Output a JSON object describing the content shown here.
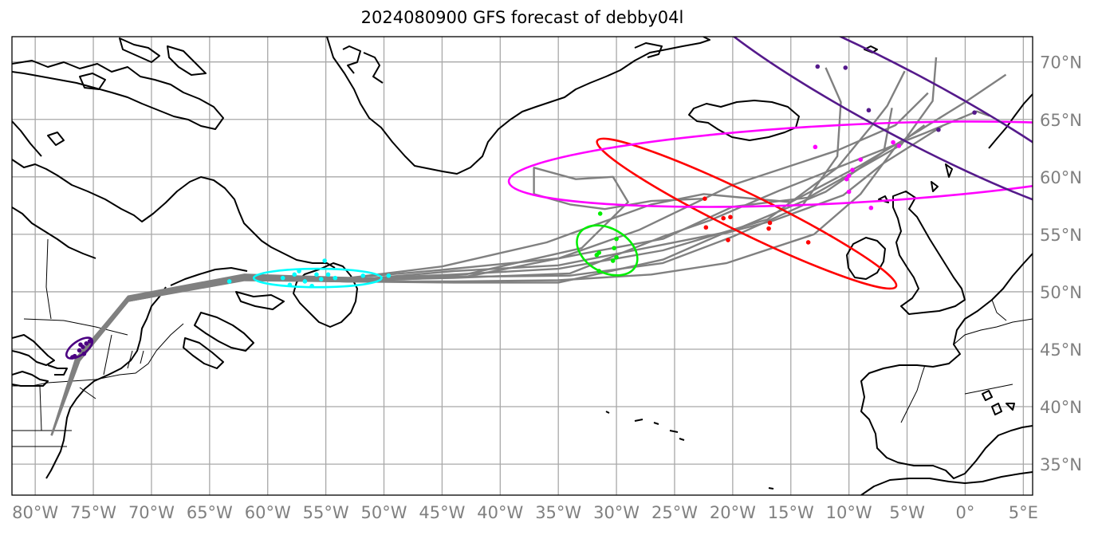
{
  "title": "2024080900 GFS forecast of debby04l",
  "map": {
    "lon_range": [
      -82,
      5.8
    ],
    "lat_range": [
      32.3,
      72.2
    ],
    "lon_ticks": [
      {
        "value": -80,
        "label": "80°W"
      },
      {
        "value": -75,
        "label": "75°W"
      },
      {
        "value": -70,
        "label": "70°W"
      },
      {
        "value": -65,
        "label": "65°W"
      },
      {
        "value": -60,
        "label": "60°W"
      },
      {
        "value": -55,
        "label": "55°W"
      },
      {
        "value": -50,
        "label": "50°W"
      },
      {
        "value": -45,
        "label": "45°W"
      },
      {
        "value": -40,
        "label": "40°W"
      },
      {
        "value": -35,
        "label": "35°W"
      },
      {
        "value": -30,
        "label": "30°W"
      },
      {
        "value": -25,
        "label": "25°W"
      },
      {
        "value": -20,
        "label": "20°W"
      },
      {
        "value": -15,
        "label": "15°W"
      },
      {
        "value": -10,
        "label": "10°W"
      },
      {
        "value": -5,
        "label": "5°W"
      },
      {
        "value": 0,
        "label": "0°"
      },
      {
        "value": 5,
        "label": "5°E"
      }
    ],
    "lat_ticks": [
      {
        "value": 35,
        "label": "35°N"
      },
      {
        "value": 40,
        "label": "40°N"
      },
      {
        "value": 45,
        "label": "45°N"
      },
      {
        "value": 50,
        "label": "50°N"
      },
      {
        "value": 55,
        "label": "55°N"
      },
      {
        "value": 60,
        "label": "60°N"
      },
      {
        "value": 65,
        "label": "65°N"
      },
      {
        "value": 70,
        "label": "70°N"
      }
    ],
    "gridlines": true,
    "colors": {
      "track": "#808080",
      "coastline": "#000000",
      "gridline": "#a8a8a8",
      "tick_label": "#808080",
      "time_1": "#4b0082",
      "time_2": "#00ffff",
      "time_3": "#00ee00",
      "time_4": "#ff0000",
      "time_5": "#ff00ff",
      "time_6": "#551a8b"
    }
  },
  "forecast_tracks": [
    [
      [
        -78.6,
        37.5
      ],
      [
        -76.5,
        44.2
      ],
      [
        -72,
        49.5
      ],
      [
        -62,
        51.4
      ],
      [
        -53,
        51.2
      ],
      [
        -45,
        51.9
      ],
      [
        -35,
        52.9
      ],
      [
        -28,
        55.4
      ],
      [
        -20,
        59.3
      ],
      [
        -11,
        62.3
      ],
      [
        -6,
        64.5
      ],
      [
        -3.2,
        67.3
      ]
    ],
    [
      [
        -78.6,
        37.5
      ],
      [
        -76.4,
        44.2
      ],
      [
        -72,
        49.6
      ],
      [
        -62,
        51.5
      ],
      [
        -53,
        51.2
      ],
      [
        -45,
        52.2
      ],
      [
        -36,
        54.3
      ],
      [
        -27,
        57.6
      ],
      [
        -22.5,
        58.5
      ],
      [
        -15,
        57.8
      ],
      [
        -9,
        61
      ],
      [
        -4,
        64
      ],
      [
        0,
        66.5
      ],
      [
        3.5,
        68.9
      ]
    ],
    [
      [
        -78.6,
        37.5
      ],
      [
        -76.4,
        44.1
      ],
      [
        -72,
        49.4
      ],
      [
        -62,
        51.3
      ],
      [
        -53,
        51.1
      ],
      [
        -44,
        51.5
      ],
      [
        -35,
        52
      ],
      [
        -26,
        53.6
      ],
      [
        -17,
        56.3
      ],
      [
        -11,
        60.8
      ],
      [
        -8,
        64.5
      ],
      [
        -6.7,
        66.2
      ],
      [
        -5.2,
        69.2
      ]
    ],
    [
      [
        -78.6,
        37.5
      ],
      [
        -76.4,
        44
      ],
      [
        -72,
        49.3
      ],
      [
        -62,
        51.2
      ],
      [
        -53,
        51
      ],
      [
        -44,
        51.3
      ],
      [
        -34,
        51.4
      ],
      [
        -26,
        52.5
      ],
      [
        -20,
        54.8
      ],
      [
        -14,
        57.5
      ],
      [
        -11,
        61.8
      ],
      [
        -10.7,
        66.5
      ],
      [
        -12,
        69.5
      ]
    ],
    [
      [
        -78.6,
        37.5
      ],
      [
        -76.3,
        44
      ],
      [
        -72,
        49.2
      ],
      [
        -62,
        51.1
      ],
      [
        -53,
        50.9
      ],
      [
        -44,
        50.9
      ],
      [
        -35,
        51
      ],
      [
        -27,
        51.5
      ],
      [
        -20.5,
        52.5
      ],
      [
        -13,
        55
      ],
      [
        -9,
        58.5
      ],
      [
        -6,
        62.6
      ],
      [
        -3.5,
        64.5
      ]
    ],
    [
      [
        -78.6,
        37.5
      ],
      [
        -76.3,
        44.1
      ],
      [
        -72,
        49.3
      ],
      [
        -62,
        51.2
      ],
      [
        -53,
        51
      ],
      [
        -44,
        51.2
      ],
      [
        -34,
        51.6
      ],
      [
        -26,
        54.8
      ],
      [
        -22,
        56.2
      ],
      [
        -16,
        58.8
      ],
      [
        -9,
        61.6
      ],
      [
        -3.5,
        63.8
      ],
      [
        1,
        65.7
      ],
      [
        2.1,
        65.3
      ]
    ],
    [
      [
        -78.6,
        37.5
      ],
      [
        -76.2,
        44
      ],
      [
        -72,
        49.2
      ],
      [
        -62,
        51.1
      ],
      [
        -53,
        50.9
      ],
      [
        -43,
        51.5
      ],
      [
        -33,
        53.8
      ],
      [
        -29,
        57.8
      ],
      [
        -30.3,
        60
      ],
      [
        -33.5,
        59.8
      ],
      [
        -37.1,
        60.8
      ],
      [
        -37.1,
        58.5
      ],
      [
        -34,
        57.6
      ],
      [
        -31,
        57.2
      ],
      [
        -27,
        57.9
      ],
      [
        -22.5,
        58.1
      ]
    ],
    [
      [
        -78.6,
        37.5
      ],
      [
        -76.3,
        44.1
      ],
      [
        -72,
        49.4
      ],
      [
        -62,
        51.2
      ],
      [
        -53,
        51
      ],
      [
        -44,
        51.8
      ],
      [
        -35,
        52.3
      ],
      [
        -27,
        53.9
      ],
      [
        -20,
        55.3
      ],
      [
        -12,
        58.7
      ],
      [
        -7,
        62.2
      ],
      [
        -6.3,
        66
      ]
    ],
    [
      [
        -78.6,
        37.5
      ],
      [
        -76.2,
        44
      ],
      [
        -72,
        49.3
      ],
      [
        -62,
        51.1
      ],
      [
        -53,
        50.9
      ],
      [
        -43,
        51.3
      ],
      [
        -33,
        53.3
      ],
      [
        -26,
        54.6
      ],
      [
        -20,
        57.4
      ],
      [
        -13.5,
        58.2
      ],
      [
        -10,
        60.2
      ],
      [
        -5.5,
        62.8
      ],
      [
        -2.8,
        66.6
      ],
      [
        -2.5,
        70.4
      ]
    ],
    [
      [
        -78.6,
        37.5
      ],
      [
        -76.3,
        44
      ],
      [
        -72,
        49.2
      ],
      [
        -62,
        51
      ],
      [
        -53,
        50.9
      ],
      [
        -44,
        50.8
      ],
      [
        -35,
        50.8
      ],
      [
        -26,
        52.8
      ],
      [
        -21,
        55
      ],
      [
        -16.5,
        56.2
      ],
      [
        -10.5,
        58.4
      ],
      [
        -7,
        61.2
      ],
      [
        -2,
        64.4
      ]
    ]
  ],
  "probability_ellipses": [
    {
      "time_index": 1,
      "center": [
        -76.2,
        45.1
      ],
      "a_deg": 1.3,
      "b_deg": 0.6,
      "angle": -35
    },
    {
      "time_index": 2,
      "center": [
        -55.7,
        51.2
      ],
      "a_deg": 5.5,
      "b_deg": 0.8,
      "angle": 0
    },
    {
      "time_index": 3,
      "center": [
        -30.8,
        53.6
      ],
      "a_deg": 2.8,
      "b_deg": 1.9,
      "angle": 30
    },
    {
      "time_index": 4,
      "center": [
        -18.8,
        56.8
      ],
      "a_deg": 14.3,
      "b_deg": 1.7,
      "angle": 26
    },
    {
      "time_index": 5,
      "center": [
        -10.8,
        61.1
      ],
      "a_deg": 28.5,
      "b_deg": 3.4,
      "angle": -3
    },
    {
      "time_index": 6,
      "center": [
        -5.2,
        66.3
      ],
      "a_deg": 20.2,
      "b_deg": 2.8,
      "angle": 28
    }
  ],
  "forecast_points": [
    {
      "time_index": 1,
      "points": [
        [
          -76.6,
          44.4
        ],
        [
          -76.2,
          44.9
        ],
        [
          -75.9,
          45.2
        ],
        [
          -75.6,
          45.5
        ],
        [
          -75.3,
          45.7
        ],
        [
          -76.8,
          44.3
        ],
        [
          -75.8,
          44.6
        ],
        [
          -76.1,
          45.4
        ]
      ]
    },
    {
      "time_index": 2,
      "points": [
        [
          -63.3,
          50.9
        ],
        [
          -58.7,
          51.2
        ],
        [
          -58.1,
          50.6
        ],
        [
          -57.7,
          51.5
        ],
        [
          -57.3,
          51.8
        ],
        [
          -56.8,
          50.9
        ],
        [
          -56.2,
          50.5
        ],
        [
          -55.8,
          51.5
        ],
        [
          -55.4,
          51.1
        ],
        [
          -54.8,
          51.5
        ],
        [
          -54.2,
          51.2
        ],
        [
          -51.8,
          51.4
        ],
        [
          -49.6,
          51.4
        ],
        [
          -55.1,
          52.7
        ]
      ]
    },
    {
      "time_index": 3,
      "points": [
        [
          -31.4,
          56.8
        ],
        [
          -31.7,
          53.2
        ],
        [
          -31.5,
          53.4
        ],
        [
          -30.2,
          53.8
        ],
        [
          -30,
          54.6
        ],
        [
          -30,
          53
        ],
        [
          -30.3,
          52.7
        ],
        [
          -31.5,
          51.8
        ]
      ]
    },
    {
      "time_index": 4,
      "points": [
        [
          -22.4,
          58.1
        ],
        [
          -22.3,
          55.6
        ],
        [
          -20.8,
          56.4
        ],
        [
          -20.4,
          54.5
        ],
        [
          -16.8,
          56
        ],
        [
          -16.9,
          55.5
        ],
        [
          -13.5,
          54.3
        ],
        [
          -20.2,
          56.5
        ]
      ]
    },
    {
      "time_index": 5,
      "points": [
        [
          -12.9,
          62.6
        ],
        [
          -10.2,
          59.8
        ],
        [
          -10,
          60.1
        ],
        [
          -9.7,
          60.6
        ],
        [
          -9,
          61.5
        ],
        [
          -10,
          58.7
        ],
        [
          -8.1,
          57.3
        ],
        [
          -5.7,
          62.7
        ],
        [
          -6.2,
          63
        ]
      ]
    },
    {
      "time_index": 6,
      "points": [
        [
          -12.7,
          69.6
        ],
        [
          -10.3,
          69.5
        ],
        [
          -8.3,
          65.8
        ],
        [
          -2.3,
          64.1
        ],
        [
          0.8,
          65.6
        ]
      ]
    }
  ]
}
